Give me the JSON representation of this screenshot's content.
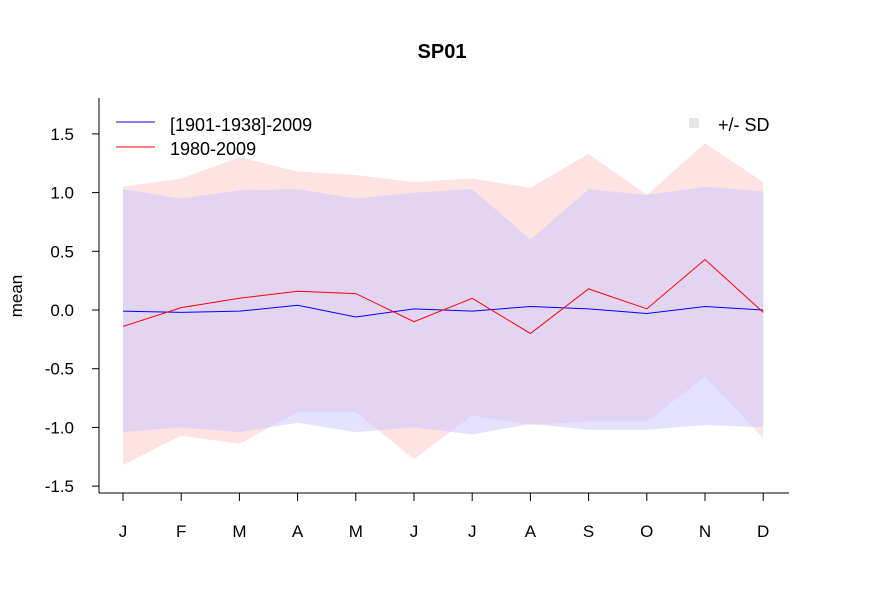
{
  "chart_data": {
    "type": "line",
    "title": "SP01",
    "xlabel": "",
    "ylabel": "mean",
    "categories": [
      "J",
      "F",
      "M",
      "A",
      "M",
      "J",
      "J",
      "A",
      "S",
      "O",
      "N",
      "D"
    ],
    "ylim": [
      -1.55,
      1.8
    ],
    "yticks": [
      "-1.5",
      "-1.0",
      "-0.5",
      "0.0",
      "0.5",
      "1.0",
      "1.5"
    ],
    "yticks_values": [
      -1.5,
      -1.0,
      -0.5,
      0.0,
      0.5,
      1.0,
      1.5
    ],
    "grid": false,
    "legend_position": "top-left",
    "series": [
      {
        "name": "[1901-1938]-2009",
        "color": "#0000ff",
        "band_color": "#c8c8ff",
        "values": [
          -0.01,
          -0.02,
          -0.01,
          0.04,
          -0.06,
          0.01,
          -0.01,
          0.03,
          0.01,
          -0.03,
          0.03,
          0.0
        ],
        "upper": [
          1.03,
          0.95,
          1.02,
          1.03,
          0.95,
          1.0,
          1.03,
          0.6,
          1.03,
          0.98,
          1.05,
          1.01
        ],
        "lower": [
          -1.04,
          -1.0,
          -1.04,
          -0.96,
          -1.04,
          -1.0,
          -1.06,
          -0.97,
          -1.02,
          -1.02,
          -0.98,
          -1.0
        ]
      },
      {
        "name": "1980-2009",
        "color": "#ff0000",
        "band_color": "#ffc8c8",
        "values": [
          -0.14,
          0.02,
          0.1,
          0.16,
          0.14,
          -0.1,
          0.1,
          -0.2,
          0.18,
          0.01,
          0.43,
          -0.02
        ],
        "upper": [
          1.05,
          1.12,
          1.3,
          1.18,
          1.15,
          1.09,
          1.12,
          1.04,
          1.33,
          0.98,
          1.42,
          1.09
        ],
        "lower": [
          -1.32,
          -1.07,
          -1.14,
          -0.87,
          -0.87,
          -1.27,
          -0.9,
          -0.98,
          -0.95,
          -0.95,
          -0.57,
          -1.09
        ]
      }
    ],
    "sd_legend_label": "+/- SD",
    "sd_legend_color": "#e6e6e6"
  }
}
